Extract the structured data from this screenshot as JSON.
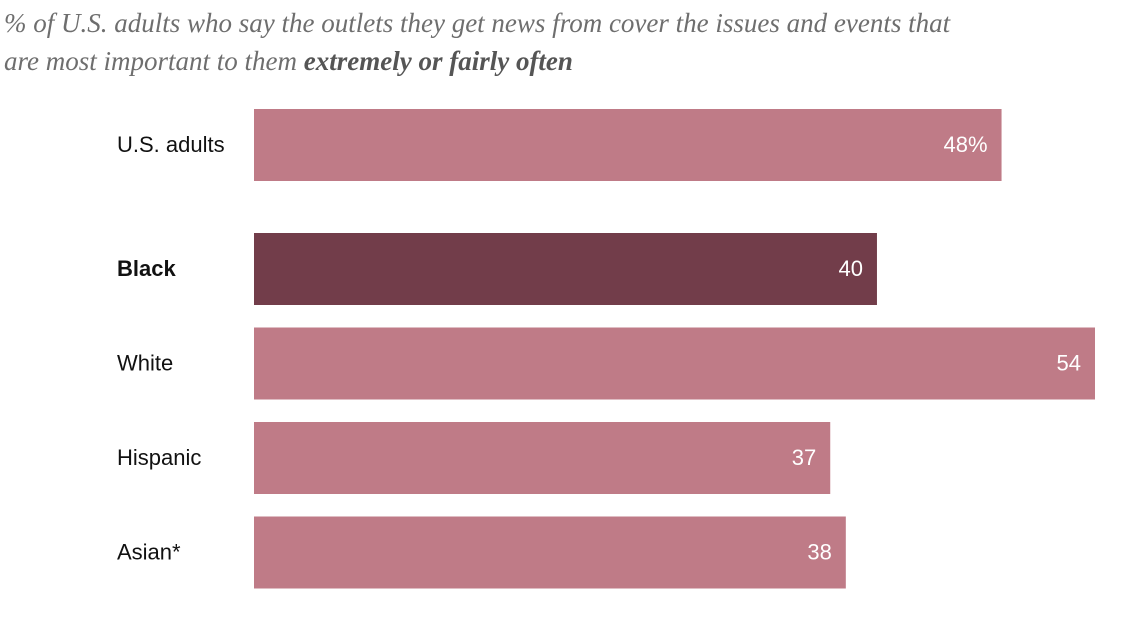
{
  "chart_data": {
    "type": "bar",
    "orientation": "horizontal",
    "title": "% of U.S. adults who say the outlets they get news from cover the issues and events that are most important to them",
    "title_emphasis": "extremely or fairly often",
    "categories": [
      "U.S. adults",
      "Black",
      "White",
      "Hispanic",
      "Asian*"
    ],
    "values": [
      48,
      40,
      54,
      37,
      38
    ],
    "value_labels": [
      "48%",
      "40",
      "54",
      "37",
      "38"
    ],
    "color": "#bf7b87",
    "highlight": "Black",
    "highlight_color": "#723d4a"
  }
}
